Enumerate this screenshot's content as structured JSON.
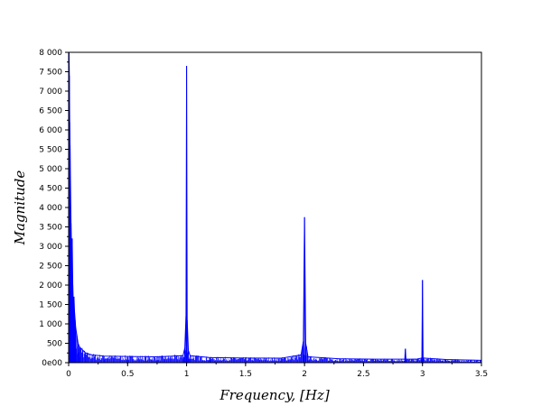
{
  "chart_data": {
    "type": "line",
    "title": "",
    "xlabel": "Frequency, [Hz]",
    "ylabel": "Magnitude",
    "xlim": [
      0,
      3.5
    ],
    "ylim": [
      0,
      8000
    ],
    "x_ticks": [
      0,
      0.5,
      1,
      1.5,
      2,
      2.5,
      3,
      3.5
    ],
    "x_tick_labels": [
      "0",
      "0.5",
      "1",
      "1.5",
      "2",
      "2.5",
      "3",
      "3.5"
    ],
    "y_ticks": [
      0,
      500,
      1000,
      1500,
      2000,
      2500,
      3000,
      3500,
      4000,
      4500,
      5000,
      5500,
      6000,
      6500,
      7000,
      7500,
      8000
    ],
    "y_tick_labels": [
      "0e00",
      "500",
      "1 000",
      "1 500",
      "2 000",
      "2 500",
      "3 000",
      "3 500",
      "4 000",
      "4 500",
      "5 000",
      "5 500",
      "6 000",
      "6 500",
      "7 000",
      "7 500",
      "8 000"
    ],
    "grid": false,
    "legend": "none",
    "series_color": "#0000ff",
    "series": [
      {
        "name": "",
        "x": [
          0,
          0.003,
          0.006,
          0.009,
          0.012,
          0.015,
          0.02,
          0.025,
          0.03,
          0.035,
          0.04,
          0.045,
          0.05,
          0.055,
          0.06,
          0.07,
          0.08,
          0.09,
          0.1,
          0.12,
          0.14,
          0.16,
          0.2,
          0.3,
          0.5,
          0.75,
          0.97,
          0.985,
          0.995,
          1.0,
          1.005,
          1.015,
          1.03,
          1.2,
          1.5,
          1.8,
          1.97,
          1.99,
          2.0,
          2.01,
          2.03,
          2.3,
          2.6,
          2.85,
          2.855,
          2.86,
          2.95,
          2.995,
          3.0,
          3.005,
          3.2,
          3.5
        ],
        "y": [
          8000,
          8000,
          7400,
          6200,
          5600,
          4800,
          3600,
          2900,
          3200,
          2000,
          1500,
          1700,
          1300,
          1100,
          900,
          700,
          500,
          420,
          380,
          320,
          260,
          230,
          200,
          170,
          160,
          150,
          180,
          380,
          1200,
          7650,
          1100,
          320,
          180,
          130,
          120,
          115,
          200,
          550,
          3750,
          500,
          150,
          100,
          90,
          90,
          360,
          90,
          90,
          120,
          2130,
          120,
          80,
          60
        ]
      }
    ]
  }
}
